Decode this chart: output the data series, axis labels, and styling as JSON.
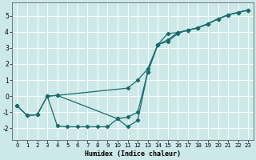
{
  "xlabel": "Humidex (Indice chaleur)",
  "background_color": "#cce8e8",
  "grid_color": "#ffffff",
  "line_color": "#1a6b6b",
  "xlim": [
    -0.5,
    23.5
  ],
  "ylim": [
    -2.7,
    5.8
  ],
  "yticks": [
    -2,
    -1,
    0,
    1,
    2,
    3,
    4,
    5
  ],
  "xticks": [
    0,
    1,
    2,
    3,
    4,
    5,
    6,
    7,
    8,
    9,
    10,
    11,
    12,
    13,
    14,
    15,
    16,
    17,
    18,
    19,
    20,
    21,
    22,
    23
  ],
  "curve_upper_x": [
    3,
    4,
    11,
    12,
    13,
    14,
    15,
    16,
    17,
    18,
    19,
    20,
    21,
    22,
    23
  ],
  "curve_upper_y": [
    0.0,
    0.05,
    0.5,
    1.0,
    1.7,
    3.2,
    3.4,
    3.9,
    4.1,
    4.25,
    4.5,
    4.8,
    5.05,
    5.2,
    5.35
  ],
  "curve_mid_x": [
    0,
    1,
    2,
    3,
    4,
    10,
    11,
    12,
    13,
    14,
    15,
    16,
    17,
    18,
    19,
    20,
    21,
    22,
    23
  ],
  "curve_mid_y": [
    -0.6,
    -1.2,
    -1.15,
    0.0,
    0.05,
    -1.4,
    -1.3,
    -1.0,
    1.5,
    3.2,
    3.5,
    3.95,
    4.1,
    4.25,
    4.5,
    4.8,
    5.05,
    5.2,
    5.35
  ],
  "curve_lower_x": [
    0,
    1,
    2,
    3,
    4,
    5,
    6,
    7,
    8,
    9,
    10,
    11,
    12,
    13,
    14,
    15,
    16,
    17,
    18,
    19,
    20,
    21,
    22,
    23
  ],
  "curve_lower_y": [
    -0.6,
    -1.2,
    -1.15,
    0.0,
    -1.85,
    -1.9,
    -1.9,
    -1.9,
    -1.9,
    -1.9,
    -1.4,
    -1.9,
    -1.5,
    1.5,
    3.2,
    3.9,
    3.95,
    4.1,
    4.25,
    4.5,
    4.8,
    5.05,
    5.2,
    5.35
  ]
}
